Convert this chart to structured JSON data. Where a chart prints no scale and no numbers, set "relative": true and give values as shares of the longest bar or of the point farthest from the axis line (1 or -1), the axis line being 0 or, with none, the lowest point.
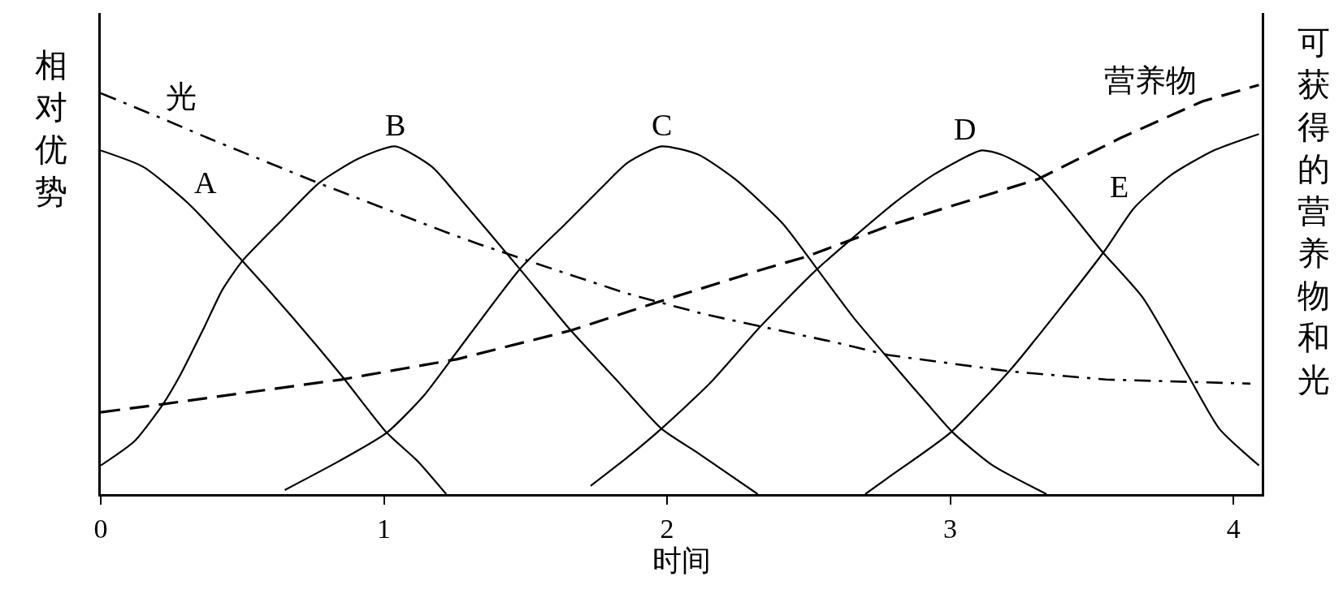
{
  "chart_data": {
    "type": "line",
    "relative": true,
    "tick_labels": "x",
    "xlabel": "时间",
    "ylabel": "相对优势",
    "y2label": "可获得的营养物和光",
    "xlim": [
      0,
      4.1
    ],
    "xticks": [
      0,
      1,
      2,
      3,
      4
    ],
    "series": [
      {
        "color": "#000000",
        "line_style": "solid",
        "x": [
          0,
          0.15,
          0.31,
          0.5,
          0.68,
          0.85,
          1.01,
          1.12,
          1.22
        ],
        "values": [
          0.84,
          0.8,
          0.71,
          0.57,
          0.43,
          0.29,
          0.15,
          0.08,
          0
        ]
      },
      {
        "color": "#000000",
        "line_style": "solid",
        "x": [
          0,
          0.12,
          0.22,
          0.28,
          0.36,
          0.43,
          0.5,
          0.64,
          0.77,
          0.91,
          1.04,
          1.17,
          1.26,
          1.48,
          1.66,
          1.82,
          1.98,
          2.11,
          2.32
        ],
        "values": [
          0.07,
          0.13,
          0.22,
          0.29,
          0.4,
          0.5,
          0.57,
          0.67,
          0.76,
          0.82,
          0.85,
          0.8,
          0.73,
          0.55,
          0.4,
          0.28,
          0.16,
          0.1,
          0
        ]
      },
      {
        "color": "#000000",
        "line_style": "solid",
        "x": [
          0.65,
          0.84,
          1.01,
          1.14,
          1.26,
          1.48,
          1.64,
          1.77,
          1.86,
          1.98,
          2.11,
          2.24,
          2.41,
          2.53,
          2.66,
          2.82,
          2.92,
          3.01,
          3.15,
          3.34
        ],
        "values": [
          0.01,
          0.08,
          0.15,
          0.24,
          0.35,
          0.55,
          0.66,
          0.75,
          0.81,
          0.85,
          0.83,
          0.77,
          0.66,
          0.55,
          0.43,
          0.3,
          0.22,
          0.15,
          0.07,
          0
        ]
      },
      {
        "color": "#000000",
        "line_style": "solid",
        "x": [
          1.73,
          1.86,
          1.98,
          2.15,
          2.33,
          2.53,
          2.8,
          2.94,
          3.11,
          3.18,
          3.31,
          3.54,
          3.68,
          3.84,
          3.95,
          4.09
        ],
        "values": [
          0.02,
          0.09,
          0.16,
          0.27,
          0.41,
          0.55,
          0.71,
          0.78,
          0.84,
          0.83,
          0.78,
          0.59,
          0.48,
          0.29,
          0.16,
          0.07
        ]
      },
      {
        "color": "#000000",
        "line_style": "solid",
        "x": [
          2.7,
          2.78,
          3.0,
          3.22,
          3.54,
          3.65,
          3.78,
          3.93,
          4.09
        ],
        "values": [
          0,
          0.04,
          0.15,
          0.31,
          0.59,
          0.7,
          0.78,
          0.84,
          0.88
        ]
      },
      {
        "color": "#000000",
        "line_style": "dashed",
        "x": [
          0,
          0.22,
          0.85,
          1.26,
          1.66,
          1.97,
          2.34,
          2.49,
          2.8,
          3.31,
          3.6,
          3.89,
          4.09
        ],
        "values": [
          0.2,
          0.22,
          0.28,
          0.33,
          0.4,
          0.47,
          0.55,
          0.58,
          0.66,
          0.77,
          0.87,
          0.96,
          1
        ]
      },
      {
        "color": "#000000",
        "line_style": "dashdot",
        "x": [
          0,
          0.21,
          0.38,
          0.77,
          1.22,
          1.34,
          1.64,
          1.86,
          2.13,
          2.33,
          2.6,
          2.78,
          3.21,
          3.55,
          4.06
        ],
        "values": [
          0.98,
          0.92,
          0.87,
          0.76,
          0.64,
          0.61,
          0.54,
          0.49,
          0.44,
          0.41,
          0.37,
          0.34,
          0.3,
          0.28,
          0.27
        ]
      }
    ],
    "annotations": [
      {
        "text": "A",
        "x": 0.31,
        "y": 0.71
      },
      {
        "text": "B",
        "x": 1.04,
        "y": 0.85
      },
      {
        "text": "C",
        "x": 1.98,
        "y": 0.85
      },
      {
        "text": "D",
        "x": 3.11,
        "y": 0.84
      },
      {
        "text": "E",
        "x": 3.65,
        "y": 0.7
      },
      {
        "text": "光",
        "x": 0.21,
        "y": 0.92
      },
      {
        "text": "营养物",
        "x": 3.89,
        "y": 0.96
      }
    ]
  }
}
